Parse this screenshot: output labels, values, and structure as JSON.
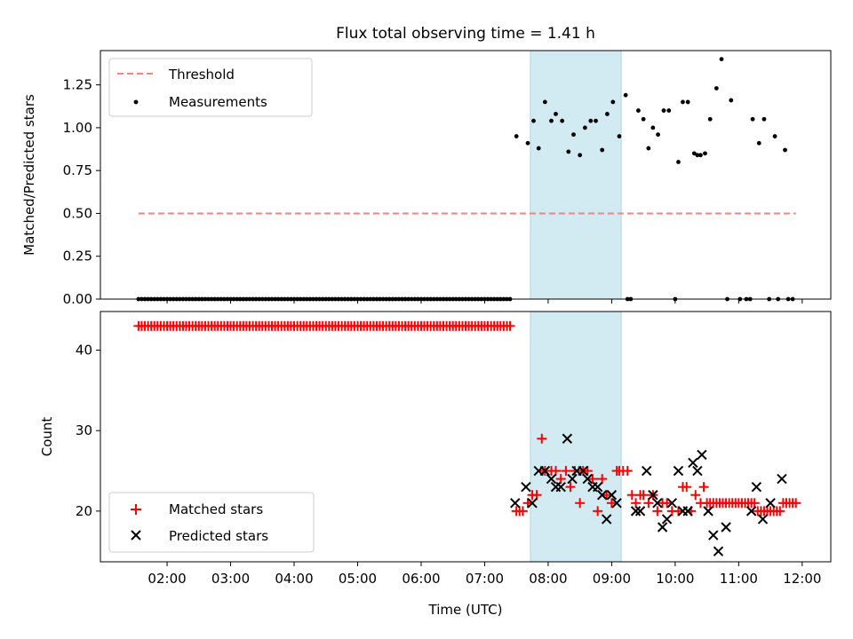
{
  "chart_data": [
    {
      "type": "scatter",
      "title": "Flux total observing time = 1.41 h",
      "xlabel": "",
      "ylabel": "Matched/Predicted stars",
      "xlim_hours": [
        0.95,
        12.45
      ],
      "ylim": [
        0,
        1.45
      ],
      "yticks": [
        0,
        0.25,
        0.5,
        0.75,
        1.0,
        1.25
      ],
      "ytick_labels": [
        "0.00",
        "0.25",
        "0.50",
        "0.75",
        "1.00",
        "1.25"
      ],
      "shaded_span_hours": [
        7.72,
        9.15
      ],
      "shade_color": "#add8e6",
      "legend_loc": "upper left",
      "legend": [
        "Threshold",
        "Measurements"
      ],
      "series": [
        {
          "name": "Threshold",
          "kind": "dashed-line",
          "color": "#ff7f7f",
          "x": [
            1.55,
            11.9
          ],
          "y": [
            0.5,
            0.5
          ]
        },
        {
          "name": "Measurements",
          "kind": "points",
          "color": "#000000",
          "zeros_x": [
            1.55,
            1.6,
            1.65,
            1.7,
            1.75,
            1.8,
            1.85,
            1.9,
            1.95,
            2.0,
            2.05,
            2.1,
            2.15,
            2.2,
            2.25,
            2.3,
            2.35,
            2.4,
            2.45,
            2.5,
            2.55,
            2.6,
            2.65,
            2.7,
            2.75,
            2.8,
            2.85,
            2.9,
            2.95,
            3.0,
            3.05,
            3.1,
            3.15,
            3.2,
            3.25,
            3.3,
            3.35,
            3.4,
            3.45,
            3.5,
            3.55,
            3.6,
            3.65,
            3.7,
            3.75,
            3.8,
            3.85,
            3.9,
            3.95,
            4.0,
            4.05,
            4.1,
            4.15,
            4.2,
            4.25,
            4.3,
            4.35,
            4.4,
            4.45,
            4.5,
            4.55,
            4.6,
            4.65,
            4.7,
            4.75,
            4.8,
            4.85,
            4.9,
            4.95,
            5.0,
            5.05,
            5.1,
            5.15,
            5.2,
            5.25,
            5.3,
            5.35,
            5.4,
            5.45,
            5.5,
            5.55,
            5.6,
            5.65,
            5.7,
            5.75,
            5.8,
            5.85,
            5.9,
            5.95,
            6.0,
            6.05,
            6.1,
            6.15,
            6.2,
            6.25,
            6.3,
            6.35,
            6.4,
            6.45,
            6.5,
            6.55,
            6.6,
            6.65,
            6.7,
            6.75,
            6.8,
            6.85,
            6.9,
            6.95,
            7.0,
            7.05,
            7.1,
            7.15,
            7.2,
            7.25,
            7.3,
            7.35,
            7.4,
            9.25,
            9.3,
            10.0,
            10.82,
            11.02,
            11.12,
            11.18,
            11.48,
            11.62,
            11.78,
            11.85
          ],
          "x": [
            7.5,
            7.68,
            7.77,
            7.85,
            7.95,
            8.05,
            8.12,
            8.22,
            8.32,
            8.4,
            8.5,
            8.58,
            8.67,
            8.75,
            8.85,
            8.93,
            9.02,
            9.12,
            9.22,
            9.42,
            9.5,
            9.58,
            9.65,
            9.73,
            9.82,
            9.9,
            10.05,
            10.12,
            10.2,
            10.3,
            10.35,
            10.4,
            10.47,
            10.55,
            10.65,
            10.73,
            10.88,
            11.22,
            11.32,
            11.4,
            11.57,
            11.73
          ],
          "y": [
            0.95,
            0.91,
            1.04,
            0.88,
            1.15,
            1.04,
            1.08,
            1.04,
            0.86,
            0.96,
            0.84,
            1.0,
            1.04,
            1.04,
            0.87,
            1.08,
            1.15,
            0.95,
            1.19,
            1.1,
            1.05,
            0.88,
            1.0,
            0.96,
            1.1,
            1.1,
            0.8,
            1.15,
            1.15,
            0.85,
            0.84,
            0.84,
            0.85,
            1.05,
            1.23,
            1.4,
            1.16,
            1.05,
            0.91,
            1.05,
            0.95,
            0.87
          ]
        }
      ]
    },
    {
      "type": "scatter",
      "title": "",
      "xlabel": "Time (UTC)",
      "ylabel": "Count",
      "xlim_hours": [
        0.95,
        12.45
      ],
      "ylim": [
        13.7,
        44.8
      ],
      "yticks": [
        20,
        30,
        40
      ],
      "ytick_labels": [
        "20",
        "30",
        "40"
      ],
      "xticks_hours": [
        2,
        3,
        4,
        5,
        6,
        7,
        8,
        9,
        10,
        11,
        12
      ],
      "xtick_labels": [
        "02:00",
        "03:00",
        "04:00",
        "05:00",
        "06:00",
        "07:00",
        "08:00",
        "09:00",
        "10:00",
        "11:00",
        "12:00"
      ],
      "shaded_span_hours": [
        7.72,
        9.15
      ],
      "legend_loc": "lower left",
      "legend": [
        "Matched stars",
        "Predicted stars"
      ],
      "series": [
        {
          "name": "Matched stars",
          "marker": "+",
          "color": "#ff0000",
          "early_range_hours": [
            1.55,
            7.4
          ],
          "early_step_hours": 0.05,
          "early_value": 43,
          "x": [
            7.5,
            7.55,
            7.6,
            7.68,
            7.75,
            7.82,
            7.9,
            7.95,
            8.05,
            8.12,
            8.2,
            8.28,
            8.35,
            8.42,
            8.5,
            8.55,
            8.62,
            8.7,
            8.78,
            8.85,
            8.92,
            9.0,
            9.08,
            9.12,
            9.18,
            9.25,
            9.32,
            9.38,
            9.45,
            9.5,
            9.58,
            9.65,
            9.72,
            9.8,
            9.87,
            9.95,
            10.05,
            10.12,
            10.18,
            10.25,
            10.32,
            10.4,
            10.45,
            10.5,
            10.55,
            10.6,
            10.65,
            10.7,
            10.75,
            10.8,
            10.85,
            10.9,
            10.95,
            11.0,
            11.05,
            11.1,
            11.15,
            11.2,
            11.25,
            11.3,
            11.35,
            11.4,
            11.45,
            11.5,
            11.55,
            11.6,
            11.65,
            11.7,
            11.75,
            11.8,
            11.85,
            11.9
          ],
          "y": [
            20,
            20,
            20,
            21,
            22,
            22,
            29,
            25,
            25,
            25,
            24,
            25,
            23,
            25,
            21,
            25,
            25,
            24,
            20,
            24,
            22,
            21,
            25,
            25,
            25,
            25,
            22,
            21,
            22,
            22,
            21,
            22,
            20,
            21,
            21,
            20,
            20,
            23,
            23,
            20,
            22,
            21,
            23,
            21,
            21,
            21,
            21,
            21,
            21,
            21,
            21,
            21,
            21,
            21,
            21,
            21,
            21,
            21,
            21,
            20,
            20,
            20,
            20,
            20,
            20,
            20,
            20,
            21,
            21,
            21,
            21,
            21
          ]
        },
        {
          "name": "Predicted stars",
          "marker": "x",
          "color": "#000000",
          "x": [
            7.48,
            7.65,
            7.75,
            7.85,
            7.95,
            8.05,
            8.12,
            8.2,
            8.3,
            8.38,
            8.45,
            8.55,
            8.62,
            8.7,
            8.78,
            8.85,
            8.92,
            9.0,
            9.08,
            9.38,
            9.45,
            9.55,
            9.65,
            9.72,
            9.8,
            9.87,
            9.95,
            10.05,
            10.12,
            10.2,
            10.28,
            10.35,
            10.42,
            10.52,
            10.6,
            10.68,
            10.8,
            11.2,
            11.28,
            11.38,
            11.5,
            11.68
          ],
          "y": [
            21,
            23,
            21,
            25,
            25,
            24,
            23,
            23,
            29,
            24,
            25,
            25,
            24,
            23,
            23,
            22,
            19,
            22,
            21,
            20,
            20,
            25,
            22,
            21,
            18,
            19,
            21,
            25,
            20,
            20,
            26,
            25,
            27,
            20,
            17,
            15,
            18,
            20,
            23,
            19,
            21,
            24
          ]
        }
      ]
    }
  ]
}
